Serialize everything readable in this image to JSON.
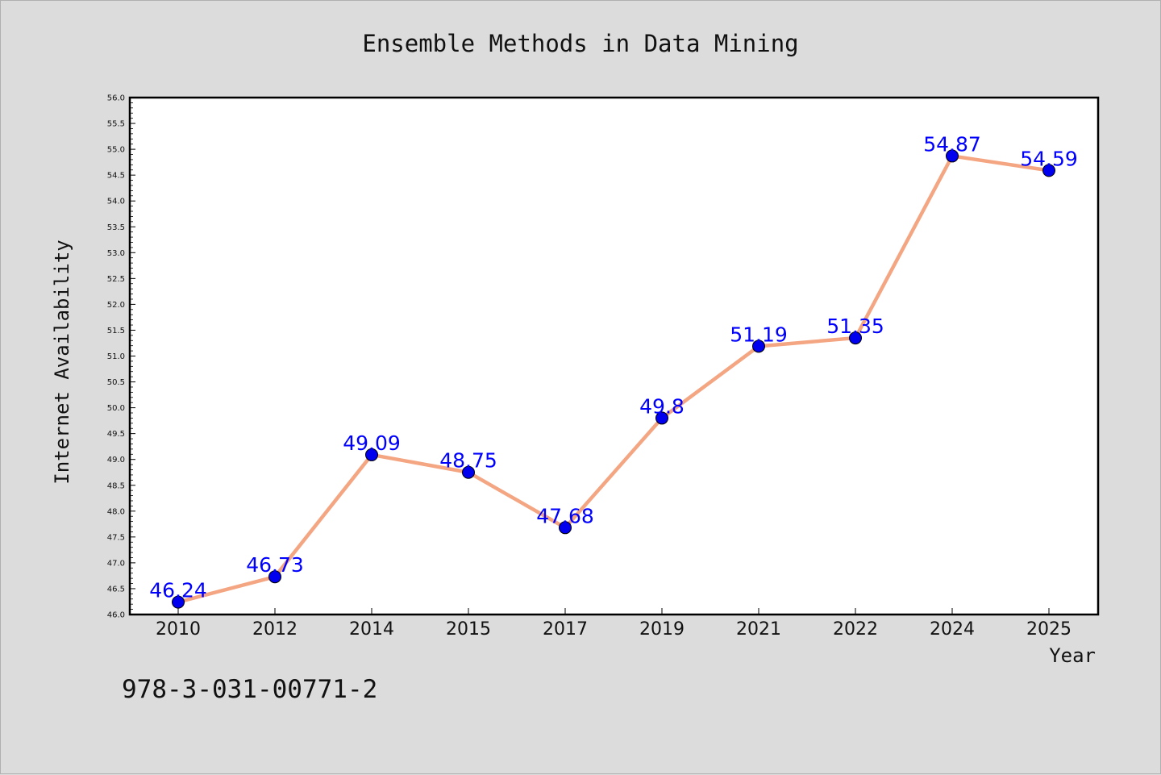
{
  "chart_data": {
    "type": "line",
    "title": "Ensemble Methods in Data Mining",
    "xlabel": "Year",
    "ylabel": "Internet Availability",
    "categories": [
      "2010",
      "2012",
      "2014",
      "2015",
      "2017",
      "2019",
      "2021",
      "2022",
      "2024",
      "2025"
    ],
    "series": [
      {
        "values": [
          46.24,
          46.73,
          49.09,
          48.75,
          47.68,
          49.8,
          51.19,
          51.35,
          54.87,
          54.59
        ],
        "data_labels": [
          "46.24",
          "46.73",
          "49.09",
          "48.75",
          "47.68",
          "49.8",
          "51.19",
          "51.35",
          "54.87",
          "54.59"
        ],
        "line_color": "#f4a582",
        "marker_color": "#0000ee",
        "label_color": "#0000ff"
      }
    ],
    "ylim": [
      46.0,
      56.0
    ],
    "yticks": [
      "46.0",
      "46.5",
      "47.0",
      "47.5",
      "48.0",
      "48.5",
      "49.0",
      "49.5",
      "50.0",
      "50.5",
      "51.0",
      "51.5",
      "52.0",
      "52.5",
      "53.0",
      "53.5",
      "54.0",
      "54.5",
      "55.0",
      "55.5",
      "56.0"
    ],
    "grid": false,
    "legend": "none"
  },
  "annotation": "978-3-031-00771-2",
  "colors": {
    "background": "#dcdcdc",
    "plot_area": "#ffffff"
  }
}
